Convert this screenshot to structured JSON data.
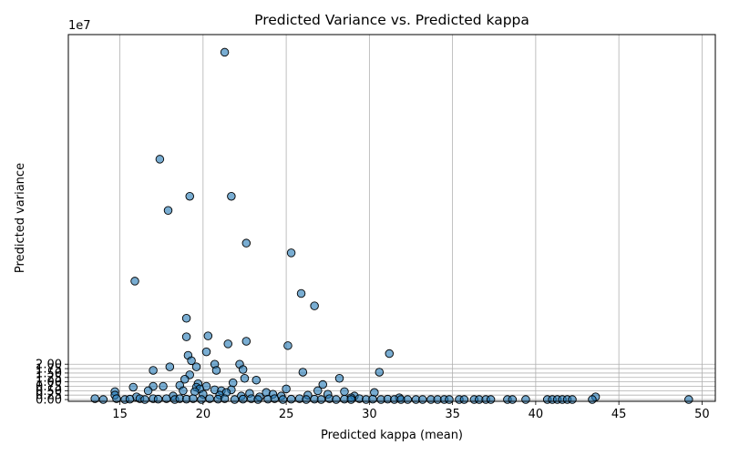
{
  "chart_data": {
    "type": "scatter",
    "title": "Predicted Variance vs. Predicted kappa",
    "xlabel": "Predicted kappa (mean)",
    "ylabel": "Predicted variance",
    "y_offset_label": "1e7",
    "y_scale": 10000000,
    "xlim": [
      11.9,
      50.8
    ],
    "ylim": [
      -0.1,
      20.65
    ],
    "x_ticks": [
      15,
      20,
      25,
      30,
      35,
      40,
      45,
      50
    ],
    "x_tick_labels": [
      "15",
      "20",
      "25",
      "30",
      "35",
      "40",
      "45",
      "50"
    ],
    "y_ticks": [
      0.0,
      0.25,
      0.5,
      0.75,
      1.0,
      1.25,
      1.5,
      1.75,
      2.0
    ],
    "y_tick_labels": [
      "0.00",
      "0.25",
      "0.50",
      "0.75",
      "1.00",
      "1.25",
      "1.50",
      "1.75",
      "2.00"
    ],
    "grid": true,
    "marker_color": "#1f77b4",
    "marker_alpha": 0.6,
    "marker_edge_color": "#000000",
    "points": [
      [
        21.3,
        19.65
      ],
      [
        17.4,
        13.6
      ],
      [
        17.9,
        10.7
      ],
      [
        19.2,
        11.5
      ],
      [
        21.7,
        11.5
      ],
      [
        22.6,
        8.85
      ],
      [
        25.3,
        8.3
      ],
      [
        15.9,
        6.7
      ],
      [
        25.9,
        6.0
      ],
      [
        26.7,
        5.3
      ],
      [
        19.0,
        4.6
      ],
      [
        19.0,
        3.55
      ],
      [
        20.3,
        3.6
      ],
      [
        21.5,
        3.15
      ],
      [
        22.6,
        3.3
      ],
      [
        25.1,
        3.05
      ],
      [
        31.2,
        2.6
      ],
      [
        19.1,
        2.5
      ],
      [
        20.2,
        2.7
      ],
      [
        19.3,
        2.2
      ],
      [
        19.6,
        1.85
      ],
      [
        18.0,
        1.85
      ],
      [
        20.7,
        2.0
      ],
      [
        22.2,
        2.0
      ],
      [
        22.4,
        1.7
      ],
      [
        20.8,
        1.65
      ],
      [
        17.0,
        1.65
      ],
      [
        26.0,
        1.55
      ],
      [
        30.6,
        1.55
      ],
      [
        19.2,
        1.4
      ],
      [
        18.9,
        1.15
      ],
      [
        22.5,
        1.2
      ],
      [
        23.2,
        1.1
      ],
      [
        28.2,
        1.2
      ],
      [
        21.8,
        0.95
      ],
      [
        27.2,
        0.85
      ],
      [
        19.7,
        0.9
      ],
      [
        18.6,
        0.8
      ],
      [
        17.6,
        0.75
      ],
      [
        15.8,
        0.7
      ],
      [
        17.0,
        0.75
      ],
      [
        20.2,
        0.75
      ],
      [
        19.6,
        0.7
      ],
      [
        19.8,
        0.6
      ],
      [
        20.7,
        0.55
      ],
      [
        21.1,
        0.5
      ],
      [
        21.7,
        0.55
      ],
      [
        25.0,
        0.6
      ],
      [
        26.9,
        0.5
      ],
      [
        28.5,
        0.45
      ],
      [
        30.3,
        0.4
      ],
      [
        14.7,
        0.45
      ],
      [
        16.7,
        0.5
      ],
      [
        18.8,
        0.5
      ],
      [
        19.5,
        0.45
      ],
      [
        21.4,
        0.4
      ],
      [
        22.8,
        0.35
      ],
      [
        23.8,
        0.4
      ],
      [
        24.2,
        0.3
      ],
      [
        26.3,
        0.25
      ],
      [
        27.5,
        0.3
      ],
      [
        29.1,
        0.2
      ],
      [
        14.7,
        0.25
      ],
      [
        16.0,
        0.15
      ],
      [
        18.2,
        0.2
      ],
      [
        20.0,
        0.3
      ],
      [
        21.0,
        0.25
      ],
      [
        22.3,
        0.2
      ],
      [
        23.4,
        0.15
      ],
      [
        24.7,
        0.2
      ],
      [
        28.9,
        0.1
      ],
      [
        31.8,
        0.1
      ],
      [
        43.6,
        0.15
      ],
      [
        13.5,
        0.05
      ],
      [
        14.0,
        0.0
      ],
      [
        14.8,
        0.05
      ],
      [
        15.3,
        0.0
      ],
      [
        15.6,
        0.02
      ],
      [
        16.2,
        0.05
      ],
      [
        16.5,
        0.0
      ],
      [
        17.0,
        0.05
      ],
      [
        17.3,
        0.02
      ],
      [
        17.8,
        0.05
      ],
      [
        18.3,
        0.0
      ],
      [
        18.6,
        0.05
      ],
      [
        19.0,
        0.02
      ],
      [
        19.4,
        0.05
      ],
      [
        19.9,
        0.0
      ],
      [
        20.4,
        0.05
      ],
      [
        20.9,
        0.02
      ],
      [
        21.3,
        0.05
      ],
      [
        21.9,
        0.0
      ],
      [
        22.4,
        0.02
      ],
      [
        22.9,
        0.05
      ],
      [
        23.3,
        0.0
      ],
      [
        23.9,
        0.02
      ],
      [
        24.3,
        0.05
      ],
      [
        24.8,
        0.0
      ],
      [
        25.3,
        0.02
      ],
      [
        25.8,
        0.05
      ],
      [
        26.2,
        0.0
      ],
      [
        26.7,
        0.02
      ],
      [
        27.1,
        0.0
      ],
      [
        27.6,
        0.05
      ],
      [
        28.0,
        0.0
      ],
      [
        28.5,
        0.02
      ],
      [
        28.9,
        0.0
      ],
      [
        29.4,
        0.05
      ],
      [
        29.8,
        0.0
      ],
      [
        30.2,
        0.02
      ],
      [
        30.7,
        0.0
      ],
      [
        31.1,
        0.02
      ],
      [
        31.5,
        0.0
      ],
      [
        31.9,
        0.0
      ],
      [
        32.3,
        0.0
      ],
      [
        32.8,
        0.0
      ],
      [
        33.2,
        0.0
      ],
      [
        33.7,
        0.0
      ],
      [
        34.1,
        0.0
      ],
      [
        34.5,
        0.0
      ],
      [
        34.8,
        0.0
      ],
      [
        35.4,
        0.0
      ],
      [
        35.7,
        0.0
      ],
      [
        36.3,
        0.0
      ],
      [
        36.6,
        0.0
      ],
      [
        37.0,
        0.0
      ],
      [
        37.3,
        0.0
      ],
      [
        38.3,
        0.0
      ],
      [
        38.6,
        0.0
      ],
      [
        39.4,
        0.0
      ],
      [
        40.7,
        0.0
      ],
      [
        41.0,
        0.0
      ],
      [
        41.3,
        0.0
      ],
      [
        41.6,
        0.0
      ],
      [
        41.9,
        0.0
      ],
      [
        42.2,
        0.0
      ],
      [
        43.4,
        0.0
      ],
      [
        49.2,
        0.0
      ]
    ]
  }
}
